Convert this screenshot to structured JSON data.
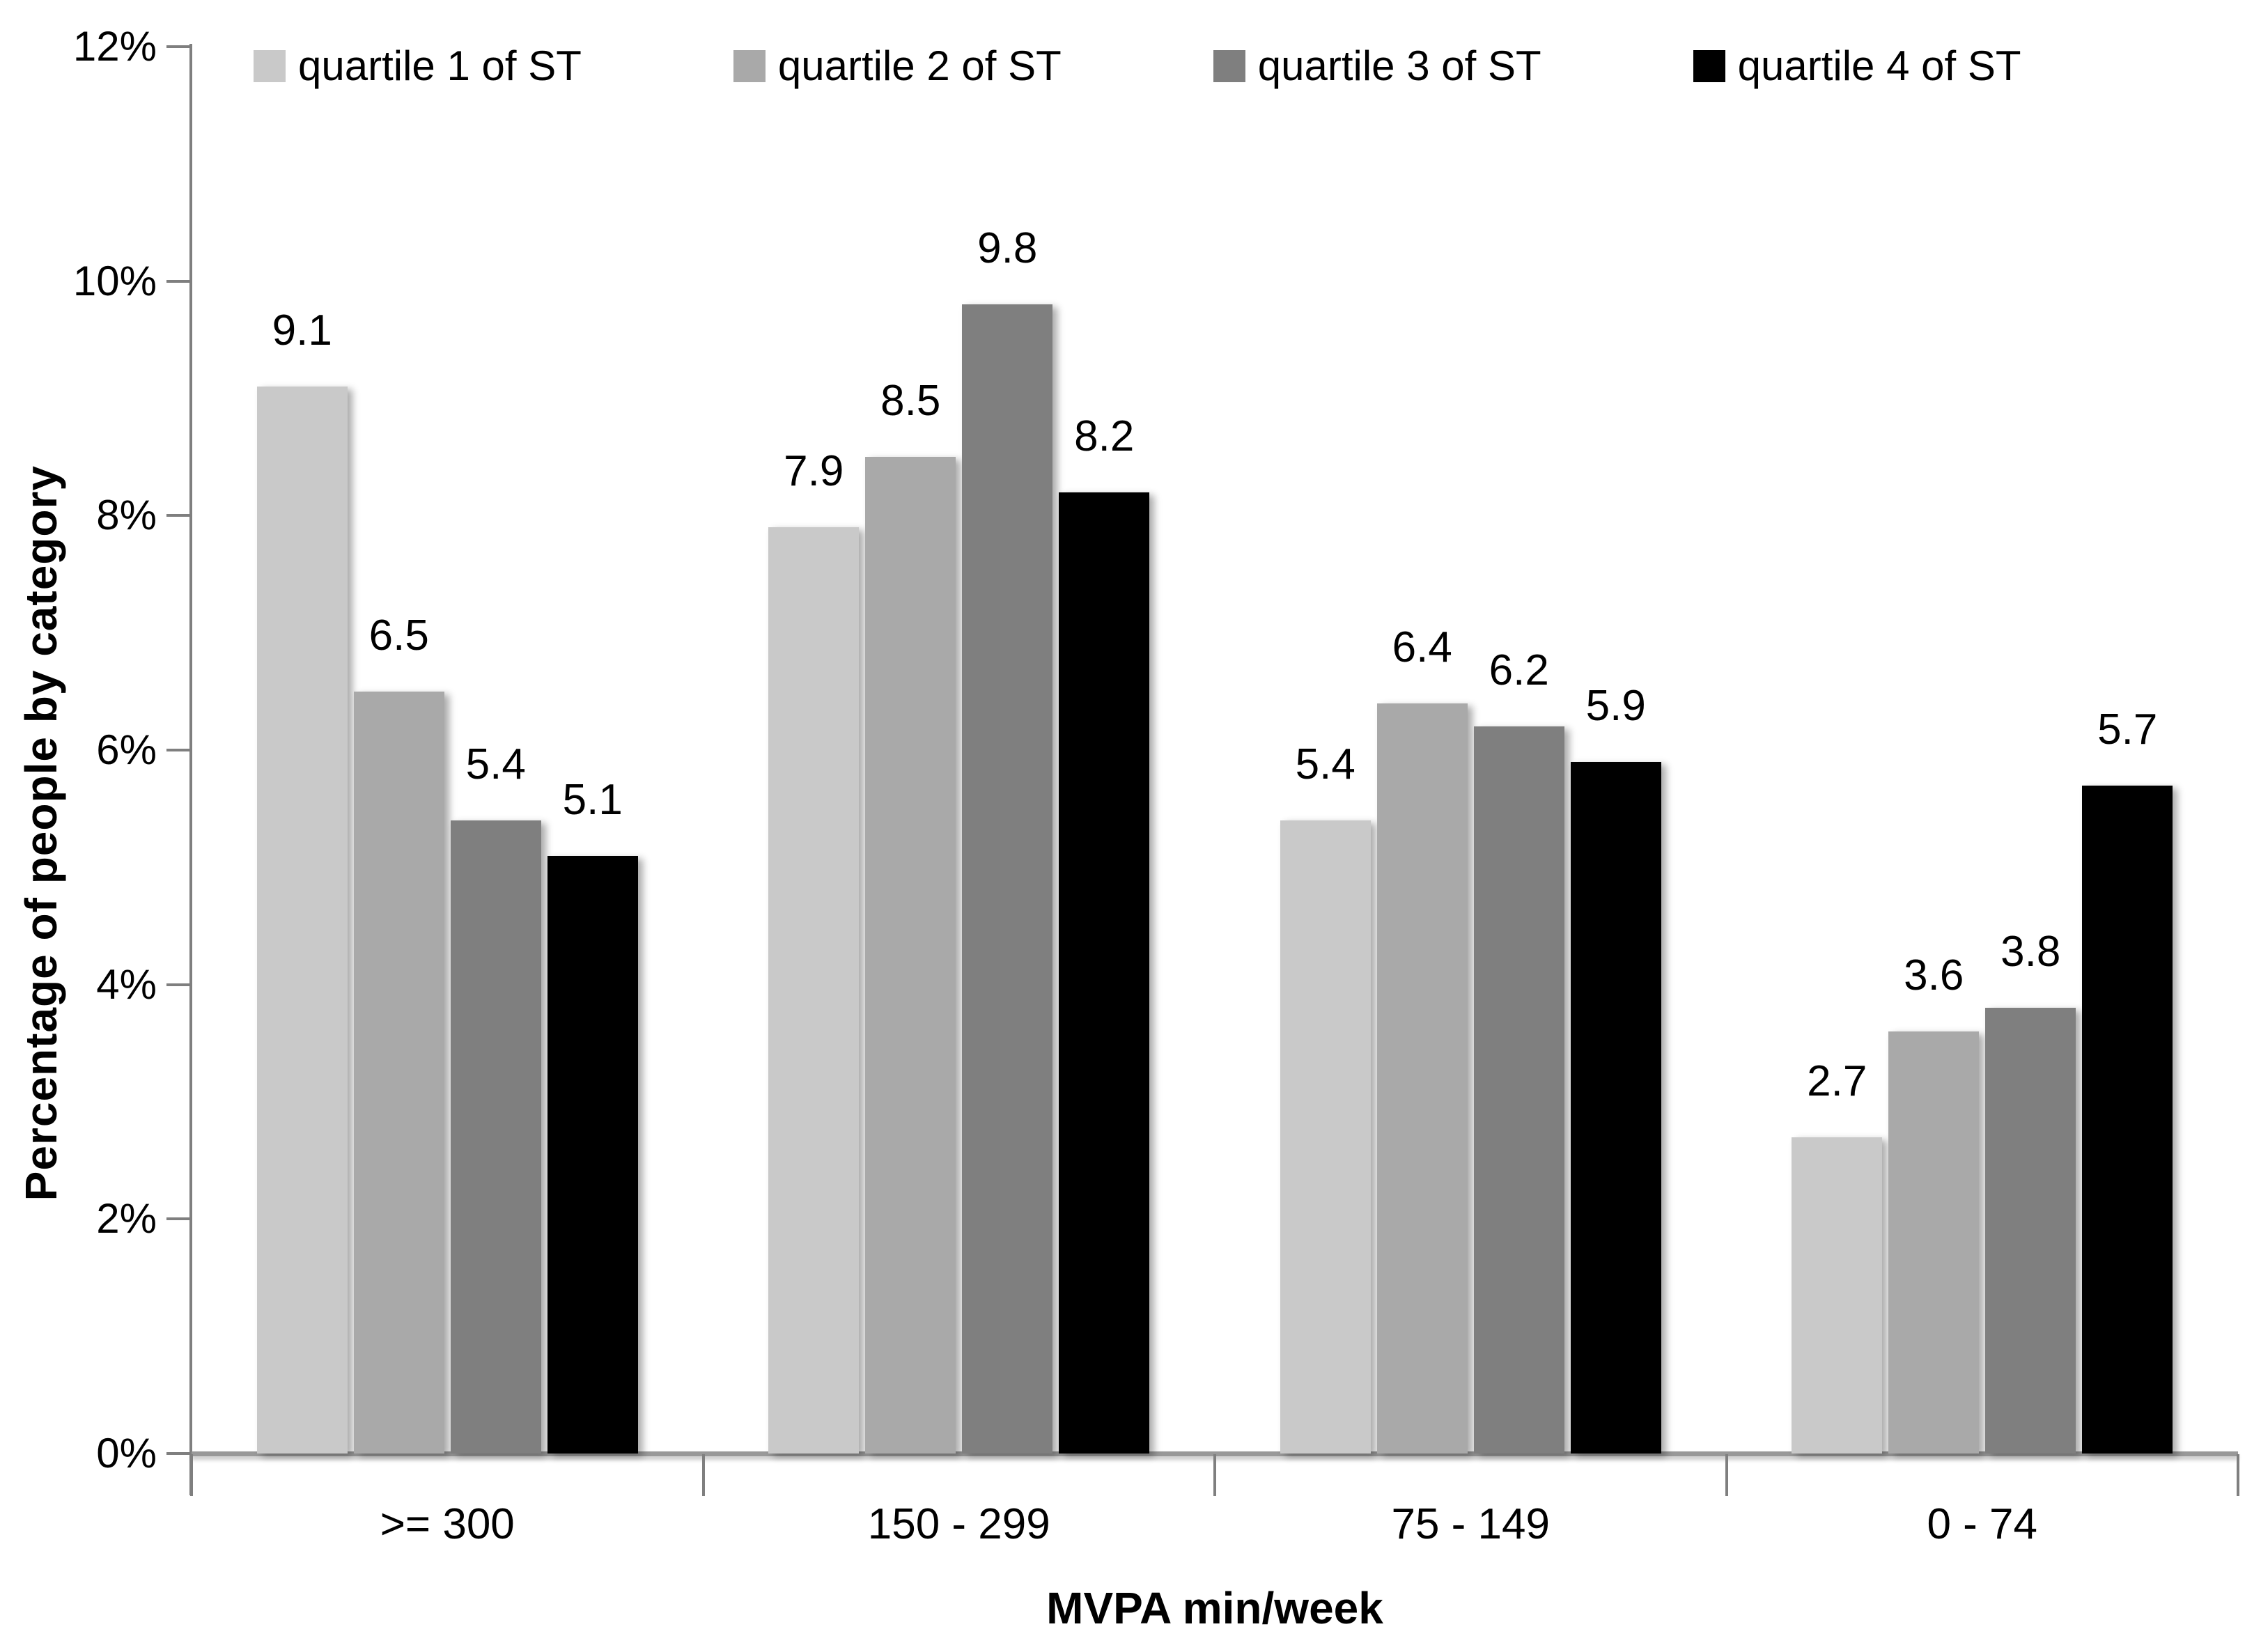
{
  "page": {
    "background_color": "#ffffff",
    "text_color": "#000000",
    "axis_line_color": "#7f7f7f",
    "x_axis_line_color": "#999999"
  },
  "chart_data": {
    "type": "bar",
    "title": "",
    "xlabel": "MVPA min/week",
    "ylabel": "Percentage of people by category",
    "categories": [
      ">= 300",
      "150 - 299",
      "75 - 149",
      "0 - 74"
    ],
    "series": [
      {
        "name": "quartile 1 of ST",
        "color": "#c9c9c9",
        "values": [
          9.1,
          7.9,
          5.4,
          2.7
        ]
      },
      {
        "name": "quartile 2 of ST",
        "color": "#a9a9a9",
        "values": [
          6.5,
          8.5,
          6.4,
          3.6
        ]
      },
      {
        "name": "quartile 3 of ST",
        "color": "#7f7f7f",
        "values": [
          5.4,
          9.8,
          6.2,
          3.8
        ]
      },
      {
        "name": "quartile 4 of ST",
        "color": "#000000",
        "values": [
          5.1,
          8.2,
          5.9,
          5.7
        ]
      }
    ],
    "data_labels_shown": true,
    "ylim": [
      0,
      12
    ],
    "ytick_step": 2,
    "ytick_labels": [
      "0%",
      "2%",
      "4%",
      "6%",
      "8%",
      "10%",
      "12%"
    ],
    "grid": false,
    "legend_position": "top"
  }
}
